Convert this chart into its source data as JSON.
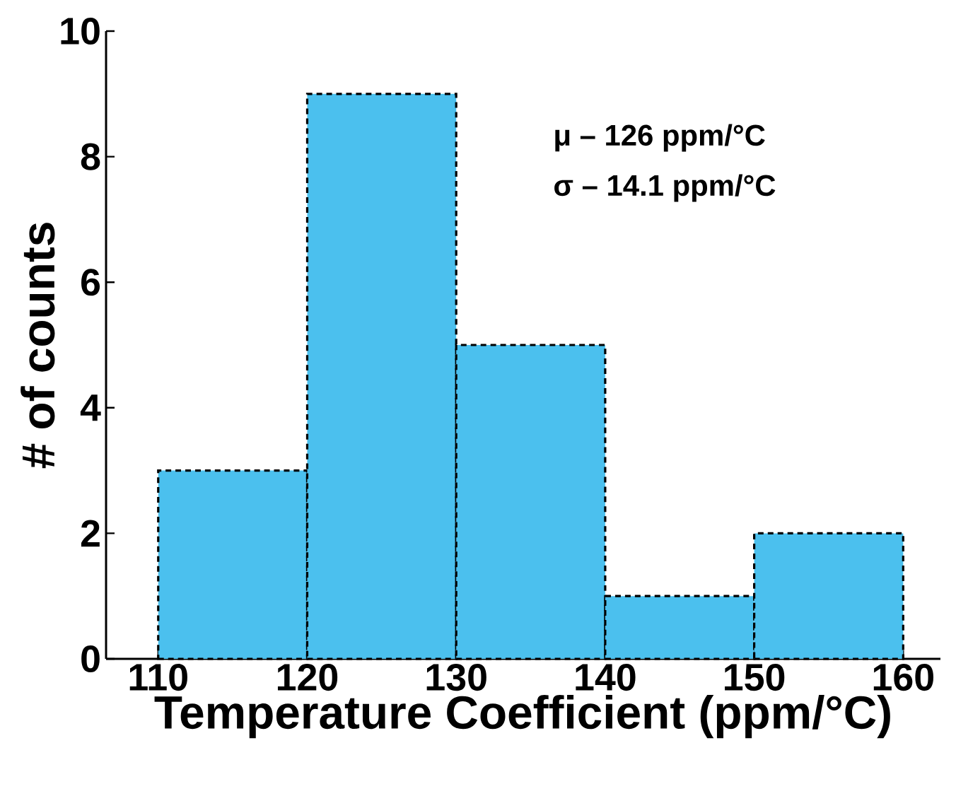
{
  "chart_data": {
    "type": "histogram",
    "xlabel": "Temperature Coefficient (ppm/°C)",
    "ylabel": "# of counts",
    "bins": [
      110,
      120,
      130,
      140,
      150,
      160
    ],
    "values": [
      3,
      9,
      5,
      1,
      2
    ],
    "color": "#4bc0ee",
    "line_style": "dashed",
    "xlim": [
      106.5,
      162.5
    ],
    "xticks": [
      110,
      120,
      130,
      140,
      150,
      160
    ],
    "ylim": [
      0,
      10
    ],
    "yticks": [
      0,
      2,
      4,
      6,
      8,
      10
    ],
    "grid": false,
    "annotations": [
      "μ – 126 ppm/°C",
      "σ – 14.1 ppm/°C"
    ]
  }
}
